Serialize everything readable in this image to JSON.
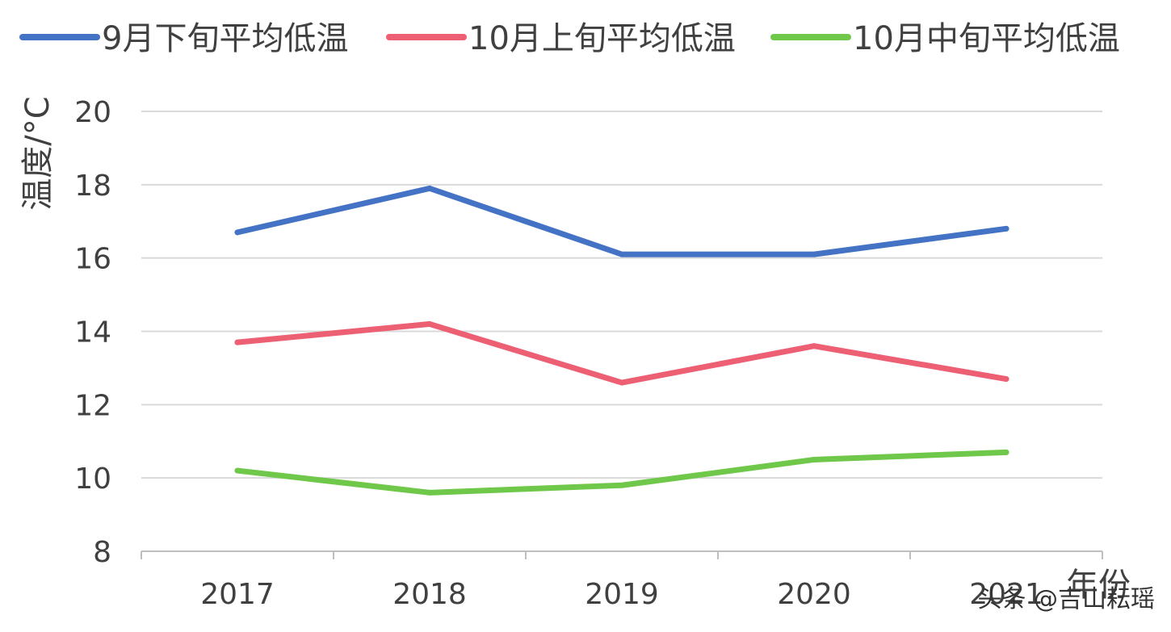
{
  "chart_data": {
    "type": "line",
    "title": "",
    "xlabel": "年份",
    "ylabel": "温度/°C",
    "categories": [
      "2017",
      "2018",
      "2019",
      "2020",
      "2021"
    ],
    "ylim": [
      8,
      20
    ],
    "yticks": [
      "8",
      "10",
      "12",
      "14",
      "16",
      "18",
      "20"
    ],
    "grid": true,
    "legend_position": "top",
    "series": [
      {
        "name": "9月下旬平均低温",
        "color": "#4472C4",
        "values": [
          16.7,
          17.9,
          16.1,
          16.1,
          16.8
        ]
      },
      {
        "name": "10月上旬平均低温",
        "color": "#ED5F73",
        "values": [
          13.7,
          14.2,
          12.6,
          13.6,
          12.7
        ]
      },
      {
        "name": "10月中旬平均低温",
        "color": "#70C84A",
        "values": [
          10.2,
          9.6,
          9.8,
          10.5,
          10.7
        ]
      }
    ]
  },
  "watermark": "头条 @吉山耘瑶"
}
